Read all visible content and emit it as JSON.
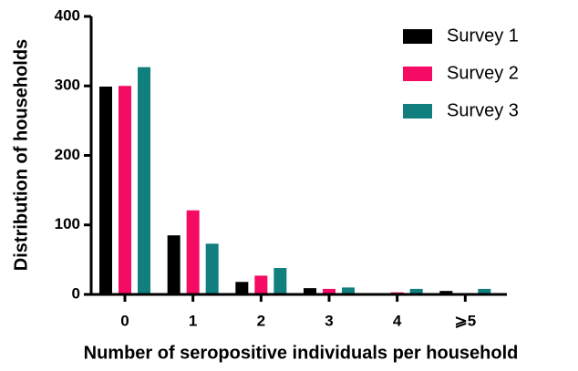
{
  "chart_data": {
    "type": "bar",
    "xlabel": "Number of seropositive individuals per household",
    "ylabel": "Distribution of households",
    "categories": [
      "0",
      "1",
      "2",
      "3",
      "4",
      "⩾5"
    ],
    "series": [
      {
        "name": "Survey 1",
        "color": "#000000",
        "values": [
          299,
          85,
          18,
          9,
          0,
          5
        ]
      },
      {
        "name": "Survey 2",
        "color": "#f50a64",
        "values": [
          300,
          121,
          27,
          8,
          3,
          2
        ]
      },
      {
        "name": "Survey 3",
        "color": "#127f7f",
        "values": [
          327,
          73,
          38,
          10,
          8,
          8
        ]
      }
    ],
    "ylim": [
      0,
      400
    ],
    "yticks": [
      0,
      100,
      200,
      300,
      400
    ],
    "legend": "upper right"
  }
}
